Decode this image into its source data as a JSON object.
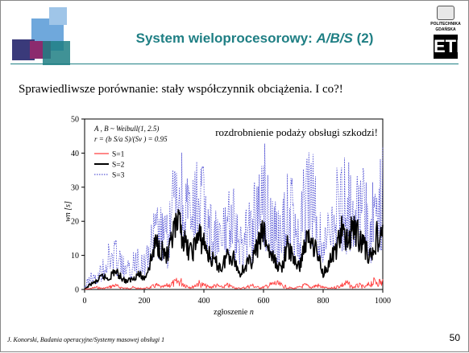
{
  "slide": {
    "title_prefix": "System wieloprocesorowy: ",
    "title_model": "A/B/S",
    "title_suffix": " (2)",
    "subtitle": "Sprawiedliwsze porównanie: stały współczynnik obciążenia. I co?!",
    "footer_left": "J. Konorski, Badania operacyjne/Systemy masowej obsługi 1",
    "page_number": "50",
    "logo_line1": "POLITECHNIKA",
    "logo_line2": "GDAŃSKA",
    "logo_mark": "ETI"
  },
  "colors": {
    "title": "#1f7f84",
    "deco_blue": "#6fa8dc",
    "deco_dark": "#3a3a7a",
    "deco_teal": "#1f7f84",
    "deco_pink": "#8c2b6e",
    "s1": "#ff4040",
    "s2": "#000000",
    "s3": "#3333cc"
  },
  "chart_data": {
    "type": "line",
    "xlabel_prefix": "zgłoszenie ",
    "xlabel_var": "n",
    "ylabel": "wn [s]",
    "xlim": [
      0,
      1000
    ],
    "ylim": [
      0,
      50
    ],
    "xticks": [
      0,
      200,
      400,
      600,
      800,
      1000
    ],
    "yticks": [
      0,
      10,
      20,
      30,
      40,
      50
    ],
    "grid": false,
    "legend_position": "top-left",
    "annotations": [
      {
        "id": "dist",
        "text": "A , B ~ Weibull(1, 2.5)"
      },
      {
        "id": "ratio",
        "text": "r = (b S/a S)/(Sv ) = 0.95"
      },
      {
        "id": "note",
        "text": "rozdrobnienie podaży obsługi szkodzi!"
      }
    ],
    "series": [
      {
        "name": "S=1",
        "style": "solid-red",
        "x": [
          0,
          20,
          40,
          60,
          80,
          100,
          120,
          140,
          160,
          180,
          200,
          220,
          240,
          260,
          280,
          300,
          320,
          340,
          360,
          380,
          400,
          420,
          440,
          460,
          480,
          500,
          520,
          540,
          560,
          580,
          600,
          620,
          640,
          660,
          680,
          700,
          720,
          740,
          760,
          780,
          800,
          820,
          840,
          860,
          880,
          900,
          920,
          940,
          960,
          980,
          1000
        ],
        "y": [
          0,
          0.5,
          1,
          0.5,
          1,
          2,
          1,
          0.5,
          1,
          0.5,
          0.5,
          1,
          2,
          1,
          2,
          3,
          4,
          2,
          1,
          3,
          2,
          1,
          2,
          1,
          2,
          1,
          0.5,
          1,
          2,
          1,
          1,
          2,
          3,
          2,
          1,
          0.5,
          1,
          2,
          1,
          2,
          1,
          0.5,
          1,
          2,
          3,
          1,
          2,
          1,
          3,
          4,
          3
        ]
      },
      {
        "name": "S=2",
        "style": "solid-black",
        "x": [
          0,
          20,
          40,
          60,
          80,
          100,
          120,
          140,
          160,
          180,
          200,
          220,
          240,
          260,
          280,
          300,
          320,
          340,
          360,
          380,
          400,
          420,
          440,
          460,
          480,
          500,
          520,
          540,
          560,
          580,
          600,
          620,
          640,
          660,
          680,
          700,
          720,
          740,
          760,
          780,
          800,
          820,
          840,
          860,
          880,
          900,
          920,
          940,
          960,
          980,
          1000
        ],
        "y": [
          0,
          2,
          3,
          5,
          4,
          7,
          5,
          3,
          4,
          6,
          4,
          10,
          18,
          15,
          12,
          22,
          24,
          16,
          14,
          20,
          18,
          12,
          10,
          8,
          14,
          12,
          6,
          9,
          11,
          16,
          22,
          14,
          10,
          8,
          16,
          12,
          8,
          18,
          20,
          14,
          6,
          10,
          14,
          22,
          18,
          24,
          20,
          16,
          12,
          20,
          19
        ]
      },
      {
        "name": "S=3",
        "style": "dotted-blue",
        "x": [
          0,
          20,
          40,
          60,
          80,
          100,
          120,
          140,
          160,
          180,
          200,
          220,
          240,
          260,
          280,
          300,
          320,
          340,
          360,
          380,
          400,
          420,
          440,
          460,
          480,
          500,
          520,
          540,
          560,
          580,
          600,
          620,
          640,
          660,
          680,
          700,
          720,
          740,
          760,
          780,
          800,
          820,
          840,
          860,
          880,
          900,
          920,
          940,
          960,
          980,
          1000
        ],
        "y": [
          1,
          6,
          4,
          10,
          14,
          16,
          12,
          8,
          10,
          16,
          12,
          18,
          26,
          24,
          22,
          40,
          44,
          36,
          30,
          42,
          38,
          28,
          24,
          20,
          36,
          30,
          18,
          26,
          28,
          36,
          48,
          34,
          26,
          22,
          40,
          32,
          22,
          42,
          44,
          32,
          18,
          26,
          34,
          44,
          38,
          44,
          40,
          34,
          28,
          40,
          42
        ]
      }
    ]
  }
}
